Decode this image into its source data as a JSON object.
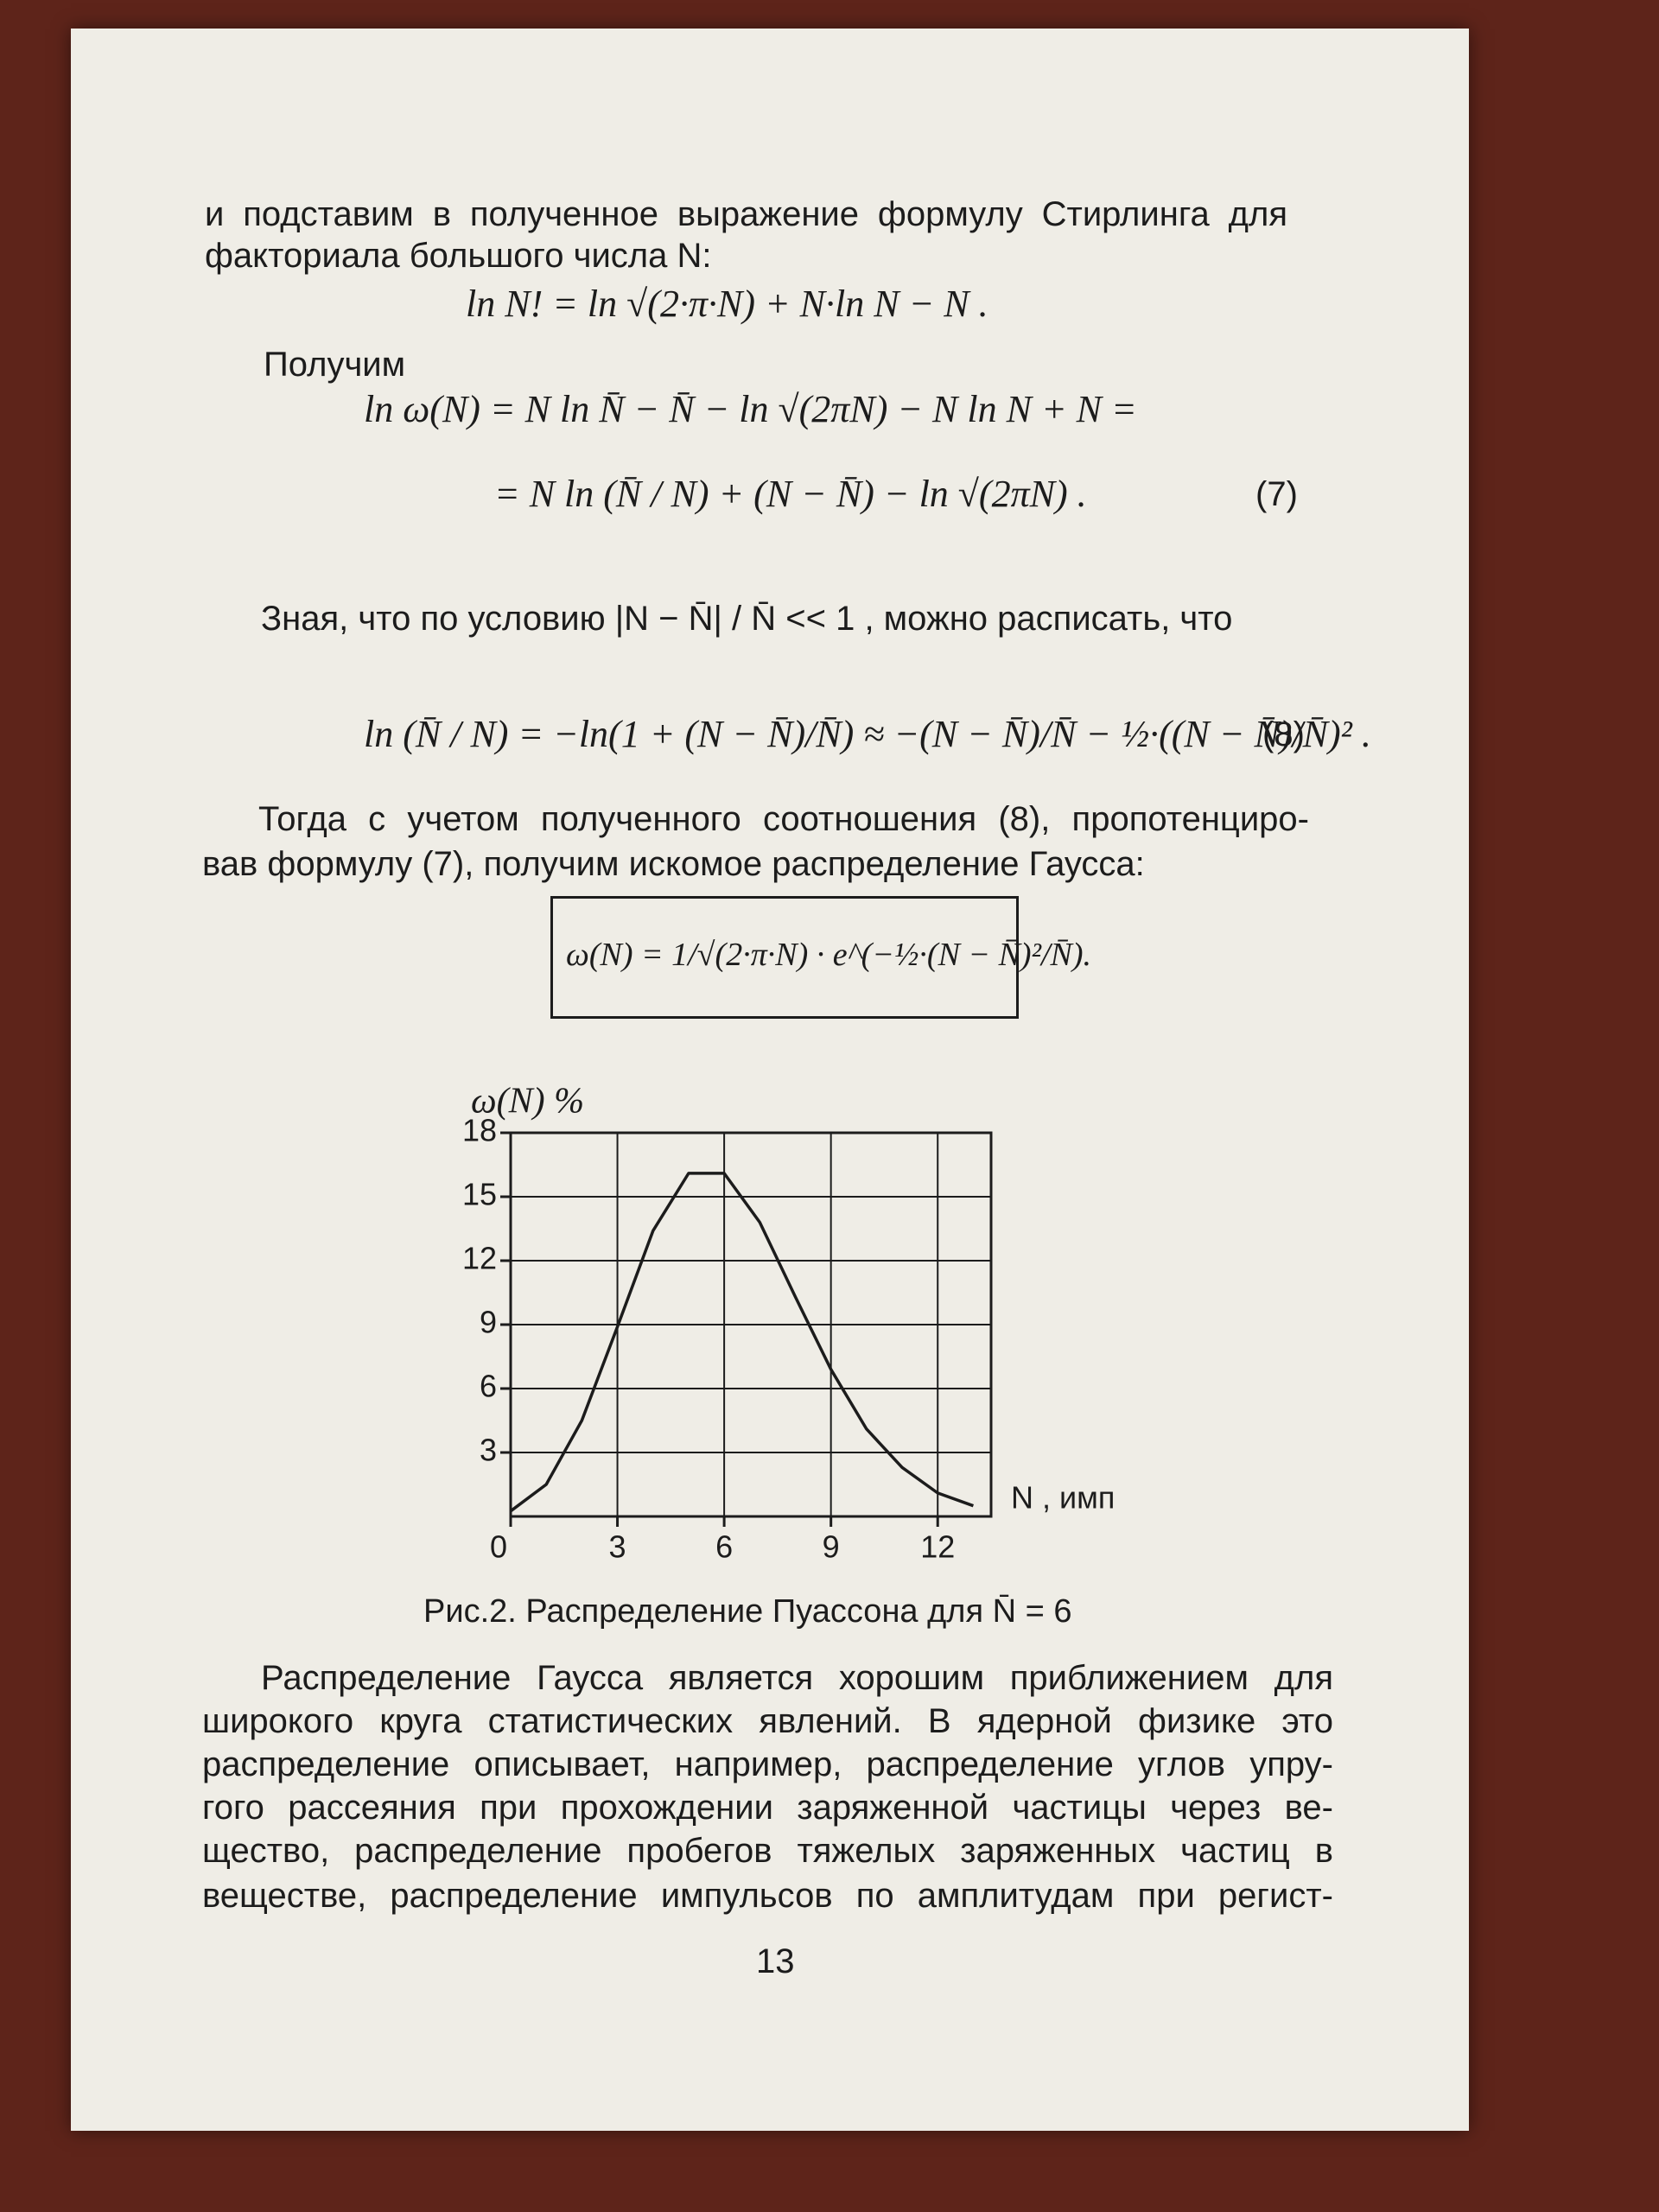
{
  "text": {
    "lines1": [
      "и подставим в полученное выражение формулу Стирлинга для",
      "факториала большого числа N:"
    ],
    "eq1": "ln N! = ln √(2·π·N) + N·ln N − N .",
    "received": "Получим",
    "eq2": [
      "ln ω(N) = N ln N̄ − N̄ − ln √(2πN) − N ln N + N =",
      "= N ln (N̄ / N) + (N − N̄) − ln √(2πN) ."
    ],
    "eq7": "(7)",
    "condition": "Зная, что по условию |N − N̄| / N̄ << 1 , можно расписать, что",
    "eq3": "ln (N̄ / N) = −ln(1 + (N − N̄)/N̄) ≈ −(N − N̄)/N̄ − ½·((N − N̄)/N̄)² .",
    "eq8": "(8)",
    "lines2": [
      "Тогда с учетом полученного соотношения (8), пропотенциро-",
      "вав формулу (7), получим искомое распределение Гаусса:"
    ],
    "gauss": "ω(N) = 1/√(2·π·N) · e^(−½·(N − N̄)²/N̄)."
  },
  "chart_data": {
    "type": "line",
    "x": [
      0,
      1,
      2,
      3,
      4,
      5,
      6,
      7,
      8,
      9,
      10,
      11,
      12,
      13
    ],
    "series": [
      {
        "color": "#1c1c1c",
        "values": [
          0.25,
          1.5,
          4.5,
          8.9,
          13.4,
          16.1,
          16.1,
          13.8,
          10.3,
          6.9,
          4.1,
          2.3,
          1.1,
          0.5
        ]
      }
    ],
    "xlim": [
      0,
      13.5
    ],
    "ylim": [
      0,
      18
    ],
    "xticks": [
      0,
      3,
      6,
      9,
      12
    ],
    "yticks": [
      3,
      6,
      9,
      12,
      15,
      18
    ],
    "ylabel": "ω(N) %",
    "xlabel": "N , имп",
    "grid": true
  },
  "caption": "Рис.2. Распределение Пуассона для N̄ = 6",
  "lines3": [
    "Распределение Гаусса является хорошим приближением для",
    "широкого круга статистических явлений. В ядерной физике это",
    "распределение описывает, например, распределение углов упру-",
    "гого рассеяния при прохождении заряженной частицы через ве-",
    "щество, распределение пробегов тяжелых заряженных частиц в",
    "веществе, распределение импульсов по амплитудам при регист-"
  ],
  "page_number": "13"
}
